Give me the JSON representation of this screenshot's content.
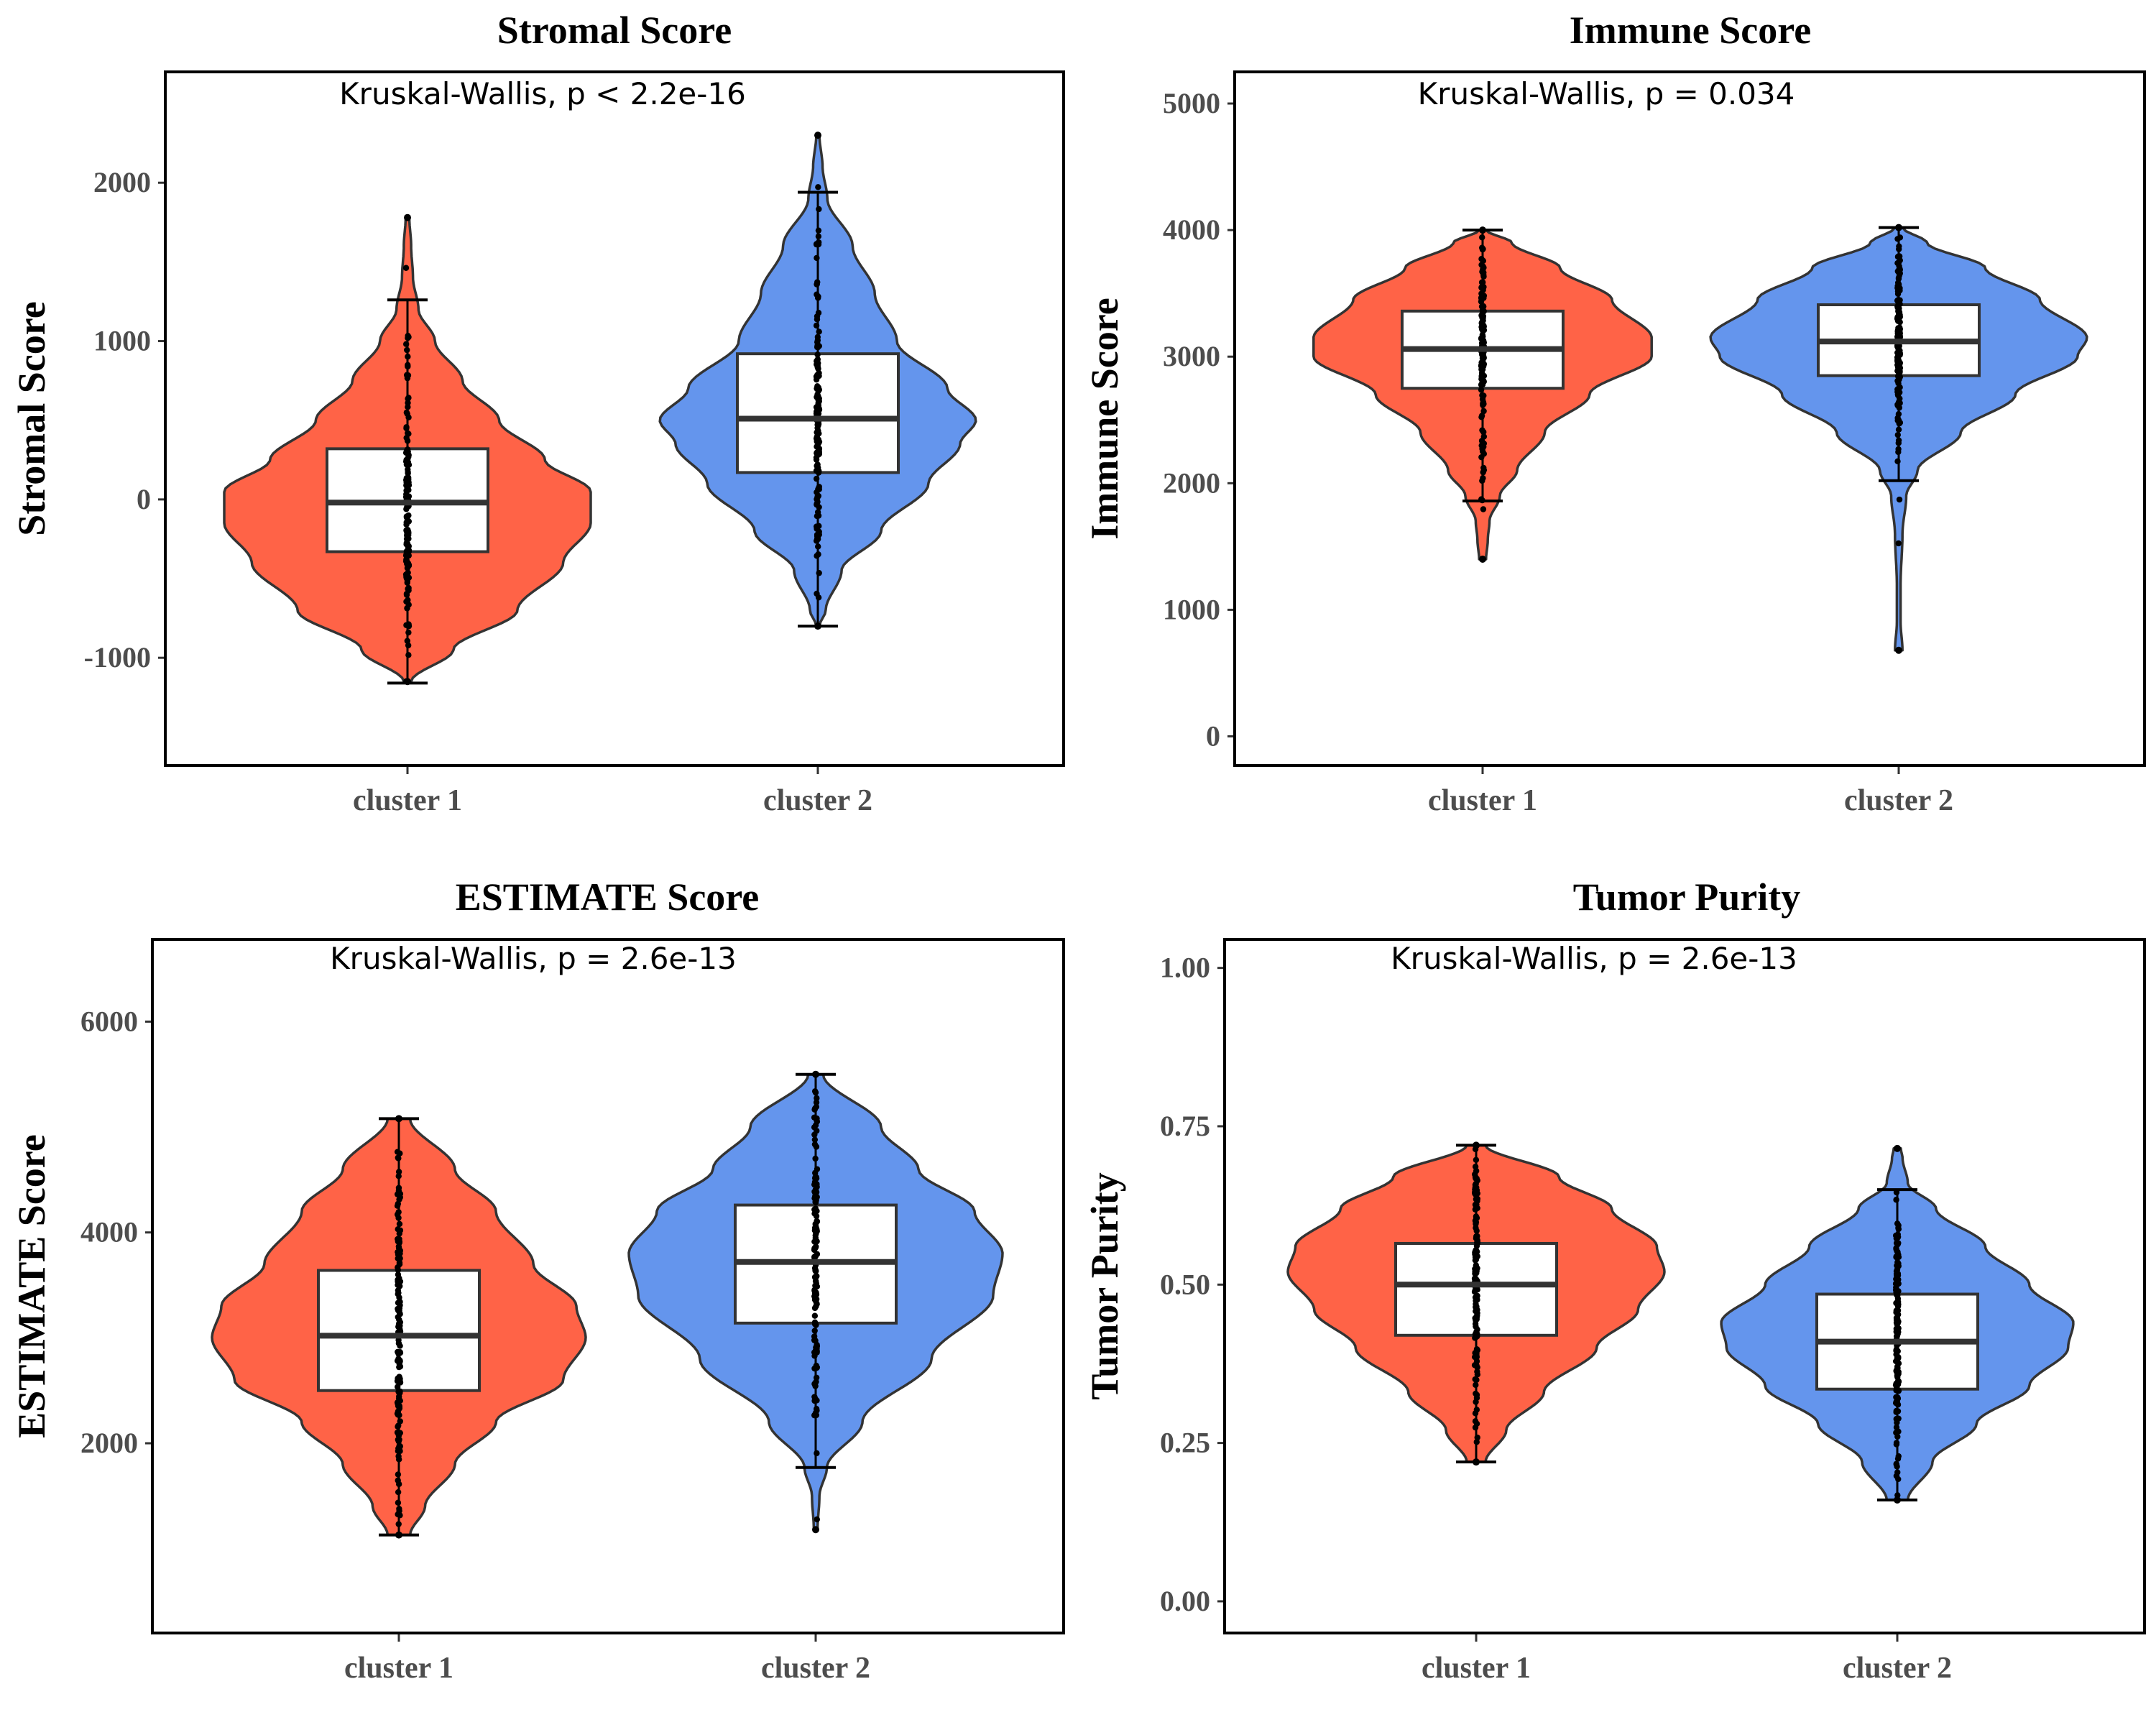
{
  "colors": {
    "cluster1": "#ff6347",
    "cluster2": "#6495ed",
    "outline": "#333333",
    "box": "#ffffff",
    "points": "#000000"
  },
  "chart_data": [
    {
      "type": "violin",
      "title": "Stromal Score",
      "ylabel": "Stromal Score",
      "annotation": "Kruskal-Wallis, p < 2.2e-16",
      "categories": [
        "cluster 1",
        "cluster 2"
      ],
      "yticks": [
        -1000,
        0,
        1000,
        2000
      ],
      "ylim": [
        -1680,
        2700
      ],
      "groups": [
        {
          "name": "cluster 1",
          "min": -1160,
          "q1": -330,
          "median": -20,
          "q3": 320,
          "max": 1260,
          "vmin": -1150,
          "vmax": 1780,
          "density": [
            [
              -1150,
              0.02
            ],
            [
              -950,
              0.25
            ],
            [
              -700,
              0.6
            ],
            [
              -400,
              0.85
            ],
            [
              -150,
              1.0
            ],
            [
              50,
              1.0
            ],
            [
              250,
              0.75
            ],
            [
              500,
              0.5
            ],
            [
              750,
              0.3
            ],
            [
              1000,
              0.15
            ],
            [
              1200,
              0.06
            ],
            [
              1400,
              0.03
            ],
            [
              1600,
              0.02
            ],
            [
              1780,
              0.01
            ]
          ]
        },
        {
          "name": "cluster 2",
          "min": -800,
          "q1": 170,
          "median": 510,
          "q3": 920,
          "max": 1940,
          "vmin": -800,
          "vmax": 2300,
          "density": [
            [
              -800,
              0.01
            ],
            [
              -700,
              0.05
            ],
            [
              -450,
              0.15
            ],
            [
              -200,
              0.4
            ],
            [
              100,
              0.7
            ],
            [
              350,
              0.9
            ],
            [
              500,
              1.0
            ],
            [
              700,
              0.82
            ],
            [
              1000,
              0.5
            ],
            [
              1300,
              0.36
            ],
            [
              1600,
              0.22
            ],
            [
              1900,
              0.06
            ],
            [
              2100,
              0.03
            ],
            [
              2300,
              0.01
            ]
          ]
        }
      ]
    },
    {
      "type": "violin",
      "title": "Immune Score",
      "ylabel": "Immune Score",
      "annotation": "Kruskal-Wallis, p = 0.034",
      "categories": [
        "cluster 1",
        "cluster 2"
      ],
      "yticks": [
        0,
        1000,
        2000,
        3000,
        4000,
        5000
      ],
      "ylim": [
        -230,
        5250
      ],
      "groups": [
        {
          "name": "cluster 1",
          "min": 1860,
          "q1": 2750,
          "median": 3060,
          "q3": 3360,
          "max": 4000,
          "vmin": 1400,
          "vmax": 4000,
          "density": [
            [
              1400,
              0.02
            ],
            [
              1550,
              0.03
            ],
            [
              1700,
              0.04
            ],
            [
              1900,
              0.1
            ],
            [
              2100,
              0.2
            ],
            [
              2400,
              0.36
            ],
            [
              2700,
              0.62
            ],
            [
              3000,
              0.98
            ],
            [
              3150,
              0.98
            ],
            [
              3450,
              0.75
            ],
            [
              3700,
              0.45
            ],
            [
              3900,
              0.17
            ],
            [
              4000,
              0.02
            ]
          ]
        },
        {
          "name": "cluster 2",
          "min": 2020,
          "q1": 2850,
          "median": 3120,
          "q3": 3410,
          "max": 4020,
          "vmin": 680,
          "vmax": 4020,
          "density": [
            [
              680,
              0.02
            ],
            [
              900,
              0.01
            ],
            [
              1200,
              0.01
            ],
            [
              1600,
              0.02
            ],
            [
              1900,
              0.04
            ],
            [
              2100,
              0.1
            ],
            [
              2400,
              0.33
            ],
            [
              2700,
              0.62
            ],
            [
              3000,
              0.95
            ],
            [
              3150,
              1.0
            ],
            [
              3450,
              0.75
            ],
            [
              3700,
              0.46
            ],
            [
              3900,
              0.15
            ],
            [
              4020,
              0.02
            ]
          ]
        }
      ]
    },
    {
      "type": "violin",
      "title": "ESTIMATE Score",
      "ylabel": "ESTIMATE Score",
      "annotation": "Kruskal-Wallis, p = 2.6e-13",
      "categories": [
        "cluster 1",
        "cluster 2"
      ],
      "yticks": [
        2000,
        4000,
        6000
      ],
      "ylim": [
        200,
        6780
      ],
      "groups": [
        {
          "name": "cluster 1",
          "min": 1130,
          "q1": 2500,
          "median": 3020,
          "q3": 3640,
          "max": 5080,
          "vmin": 1130,
          "vmax": 5080,
          "density": [
            [
              1130,
              0.06
            ],
            [
              1400,
              0.14
            ],
            [
              1800,
              0.3
            ],
            [
              2200,
              0.52
            ],
            [
              2600,
              0.88
            ],
            [
              3000,
              1.0
            ],
            [
              3300,
              0.95
            ],
            [
              3700,
              0.72
            ],
            [
              4200,
              0.52
            ],
            [
              4600,
              0.3
            ],
            [
              5080,
              0.06
            ]
          ]
        },
        {
          "name": "cluster 2",
          "min": 1770,
          "q1": 3140,
          "median": 3720,
          "q3": 4260,
          "max": 5500,
          "vmin": 1180,
          "vmax": 5500,
          "density": [
            [
              1180,
              0.01
            ],
            [
              1500,
              0.02
            ],
            [
              1770,
              0.06
            ],
            [
              2200,
              0.25
            ],
            [
              2800,
              0.62
            ],
            [
              3400,
              0.95
            ],
            [
              3800,
              1.0
            ],
            [
              4200,
              0.85
            ],
            [
              4600,
              0.55
            ],
            [
              5000,
              0.35
            ],
            [
              5500,
              0.04
            ]
          ]
        }
      ]
    },
    {
      "type": "violin",
      "title": "Tumor Purity",
      "ylabel": "Tumor Purity",
      "annotation": "Kruskal-Wallis, p = 2.6e-13",
      "categories": [
        "cluster 1",
        "cluster 2"
      ],
      "yticks": [
        0.0,
        0.25,
        0.5,
        0.75,
        1.0
      ],
      "ytick_labels": [
        "0.00",
        "0.25",
        "0.50",
        "0.75",
        "1.00"
      ],
      "ylim": [
        -0.05,
        1.045
      ],
      "groups": [
        {
          "name": "cluster 1",
          "min": 0.22,
          "q1": 0.42,
          "median": 0.5,
          "q3": 0.565,
          "max": 0.72,
          "vmin": 0.22,
          "vmax": 0.72,
          "density": [
            [
              0.22,
              0.05
            ],
            [
              0.27,
              0.16
            ],
            [
              0.33,
              0.36
            ],
            [
              0.4,
              0.64
            ],
            [
              0.46,
              0.86
            ],
            [
              0.52,
              1.0
            ],
            [
              0.56,
              0.96
            ],
            [
              0.62,
              0.72
            ],
            [
              0.67,
              0.44
            ],
            [
              0.72,
              0.05
            ]
          ]
        },
        {
          "name": "cluster 2",
          "min": 0.16,
          "q1": 0.335,
          "median": 0.41,
          "q3": 0.485,
          "max": 0.65,
          "vmin": 0.16,
          "vmax": 0.715,
          "density": [
            [
              0.16,
              0.06
            ],
            [
              0.22,
              0.2
            ],
            [
              0.28,
              0.45
            ],
            [
              0.34,
              0.75
            ],
            [
              0.4,
              0.97
            ],
            [
              0.44,
              1.0
            ],
            [
              0.5,
              0.75
            ],
            [
              0.56,
              0.5
            ],
            [
              0.62,
              0.22
            ],
            [
              0.66,
              0.06
            ],
            [
              0.7,
              0.03
            ],
            [
              0.715,
              0.02
            ]
          ]
        }
      ]
    }
  ]
}
